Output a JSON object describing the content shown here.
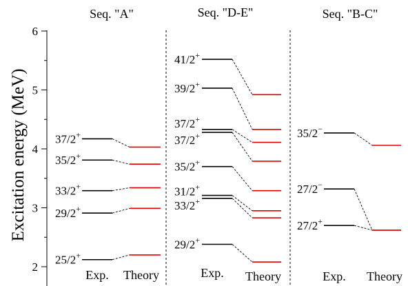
{
  "chart_data": {
    "type": "level-scheme",
    "ylabel": "Excitation energy (MeV)",
    "ylim": [
      1.75,
      6.05
    ],
    "y_ticks": [
      "2",
      "3",
      "4",
      "5",
      "6"
    ],
    "colors": {
      "experiment": "#000000",
      "theory": "#e00000",
      "connector": "#000000",
      "divider": "#000000"
    },
    "panels": [
      {
        "title": "Seq. \"A\"",
        "exp_label": "Exp.",
        "theory_label": "Theory",
        "levels": [
          {
            "label": "37/2+",
            "exp": 4.17,
            "theory": 4.03
          },
          {
            "label": "35/2+",
            "exp": 3.81,
            "theory": 3.74
          },
          {
            "label": "33/2+",
            "exp": 3.29,
            "theory": 3.34
          },
          {
            "label": "29/2+",
            "exp": 2.91,
            "theory": 2.99
          },
          {
            "label": "25/2+",
            "exp": 2.12,
            "theory": 2.2
          }
        ]
      },
      {
        "title": "Seq. \"D-E\"",
        "exp_label": "Exp.",
        "theory_label": "Theory",
        "levels": [
          {
            "label": "41/2+",
            "exp": 5.52,
            "theory": 4.92
          },
          {
            "label": "39/2+",
            "exp": 5.03,
            "theory": 4.33
          },
          {
            "label": "37/2+",
            "exp": 4.33,
            "theory": 4.11
          },
          {
            "label": "37/2+",
            "exp": 4.28,
            "theory": 3.79
          },
          {
            "label": "35/2+",
            "exp": 3.7,
            "theory": 3.29
          },
          {
            "label": "31/2+",
            "exp": 3.21,
            "theory": 2.95
          },
          {
            "label": "33/2+",
            "exp": 3.16,
            "theory": 2.83
          },
          {
            "label": "29/2+",
            "exp": 2.38,
            "theory": 2.08
          }
        ]
      },
      {
        "title": "Seq. \"B-C\"",
        "exp_label": "Exp.",
        "theory_label": "Theory",
        "levels": [
          {
            "label": "35/2−",
            "exp": 4.27,
            "theory": 4.06
          },
          {
            "label": "27/2−",
            "exp": 3.32,
            "theory": 2.62
          },
          {
            "label": "27/2+",
            "exp": 2.7,
            "theory": 2.62
          }
        ]
      }
    ]
  }
}
